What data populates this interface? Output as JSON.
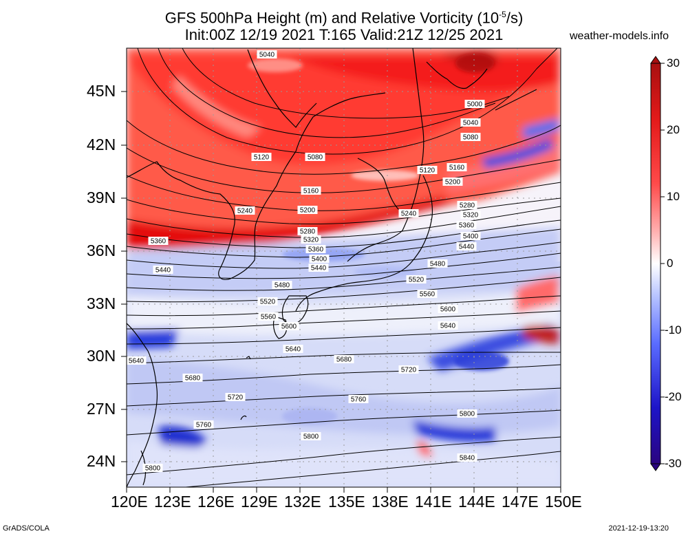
{
  "title": {
    "line1_main": "GFS 500hPa Height (m) and Relative Vorticity (10",
    "line1_exp": "-5",
    "line1_end": "/s)",
    "line2": "Init:00Z 12/19 2021 T:165 Valid:21Z 12/25 2021"
  },
  "site": "weather-models.info",
  "footer": {
    "left": "GrADS/COLA",
    "right": "2021-12-19-13:20"
  },
  "map": {
    "lon_labels": [
      "120E",
      "123E",
      "126E",
      "129E",
      "132E",
      "135E",
      "138E",
      "141E",
      "144E",
      "147E",
      "150E"
    ],
    "lat_labels": [
      "45N",
      "42N",
      "39N",
      "36N",
      "33N",
      "30N",
      "27N",
      "24N"
    ],
    "extent": {
      "lon": [
        120,
        150
      ],
      "lat": [
        22.5,
        48
      ]
    }
  },
  "colorbar": {
    "ticks": [
      "30",
      "20",
      "10",
      "0",
      "-10",
      "-20",
      "-30"
    ],
    "range": [
      -30,
      30
    ]
  },
  "contour_labels": [
    "5040",
    "5000",
    "5040",
    "5080",
    "5120",
    "5080",
    "5120",
    "5160",
    "5200",
    "5160",
    "5240",
    "5200",
    "5240",
    "5280",
    "5320",
    "5360",
    "5400",
    "5440",
    "5280",
    "5320",
    "5360",
    "5360",
    "5400",
    "5440",
    "5440",
    "5480",
    "5480",
    "5520",
    "5520",
    "5560",
    "5560",
    "5600",
    "5600",
    "5640",
    "5640",
    "5640",
    "5680",
    "5680",
    "5720",
    "5720",
    "5760",
    "5760",
    "5800",
    "5800",
    "5800",
    "5840"
  ]
}
